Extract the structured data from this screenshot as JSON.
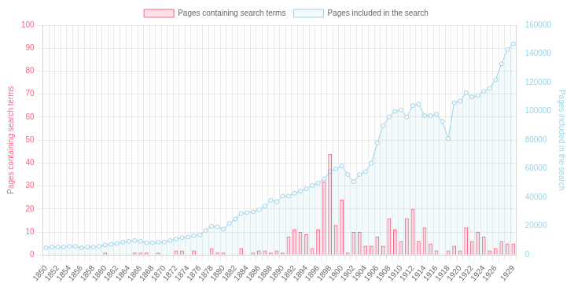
{
  "chart_data": {
    "type": "bar",
    "categories": [
      "1850",
      null,
      "1852",
      null,
      "1854",
      null,
      "1856",
      null,
      "1858",
      null,
      "1860",
      null,
      "1862",
      null,
      "1864",
      null,
      "1866",
      null,
      "1868",
      null,
      "1870",
      null,
      "1872",
      null,
      "1874",
      null,
      "1876",
      null,
      "1878",
      null,
      "1880",
      null,
      "1882",
      null,
      "1884",
      null,
      "1886",
      null,
      "1888",
      null,
      "1890",
      null,
      "1892",
      null,
      "1894",
      null,
      "1896",
      null,
      "1898",
      null,
      "1900",
      null,
      "1902",
      null,
      "1904",
      null,
      "1906",
      null,
      "1908",
      null,
      "1910",
      null,
      "1912",
      null,
      "1914",
      null,
      "1916",
      null,
      "1918",
      null,
      "1920",
      null,
      "1922",
      null,
      "1924",
      null,
      "1926",
      null,
      null,
      "1929"
    ],
    "series": [
      {
        "name": "Pages included in the search",
        "type": "line",
        "axis": "y2",
        "color": "#9ad3ea",
        "marker": "circle",
        "values": [
          5000,
          5500,
          5500,
          5500,
          6000,
          6000,
          5000,
          5500,
          5500,
          6000,
          7000,
          7500,
          8000,
          9000,
          9500,
          10000,
          9500,
          8500,
          8500,
          9000,
          9000,
          10000,
          11000,
          12000,
          12500,
          13500,
          14000,
          17000,
          20000,
          19500,
          18000,
          22000,
          25000,
          29000,
          29500,
          30000,
          31500,
          34000,
          38000,
          37000,
          41000,
          41000,
          43000,
          44500,
          46000,
          48500,
          50000,
          53000,
          58000,
          60000,
          62000,
          56000,
          51000,
          56000,
          58000,
          64000,
          78000,
          90000,
          96000,
          100000,
          101000,
          96000,
          104000,
          105000,
          97000,
          97000,
          98000,
          93000,
          81000,
          106000,
          107000,
          113000,
          110000,
          111000,
          114000,
          116000,
          122000,
          133000,
          143000,
          147000
        ]
      },
      {
        "name": "Pages containing search terms",
        "type": "bar",
        "color": "#ff6384",
        "values": [
          0,
          0,
          0,
          0,
          0,
          0,
          0,
          0,
          0,
          0,
          1,
          0,
          0,
          0,
          0,
          1,
          1,
          1,
          0,
          1,
          0,
          0,
          2,
          2,
          0,
          2,
          0,
          0,
          3,
          1,
          1,
          0,
          0,
          3,
          0,
          1,
          2,
          2,
          1,
          2,
          1,
          8,
          11,
          10,
          9,
          3,
          11,
          32,
          44,
          13,
          24,
          1,
          10,
          10,
          4,
          4,
          8,
          4,
          16,
          11,
          6,
          16,
          20,
          6,
          12,
          5,
          2,
          0,
          2,
          4,
          2,
          12,
          6,
          10,
          8,
          2,
          3,
          6,
          5,
          5
        ]
      }
    ],
    "y_label": "Pages containing search terms",
    "y2_label": "Pages included in the search",
    "ylim": [
      0,
      100
    ],
    "yticks": [
      0,
      10,
      20,
      30,
      40,
      50,
      60,
      70,
      80,
      90,
      100
    ],
    "y2lim": [
      0,
      160000
    ],
    "y2ticks": [
      0,
      20000,
      40000,
      60000,
      80000,
      100000,
      120000,
      140000,
      160000
    ],
    "grid": true,
    "legend": "top"
  }
}
